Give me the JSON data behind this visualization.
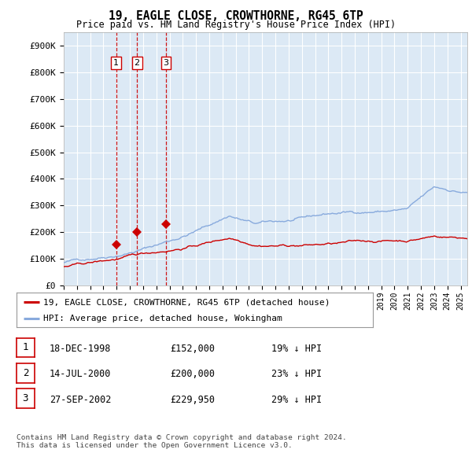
{
  "title1": "19, EAGLE CLOSE, CROWTHORNE, RG45 6TP",
  "title2": "Price paid vs. HM Land Registry's House Price Index (HPI)",
  "bg_color": "#dce9f5",
  "grid_color": "#ffffff",
  "ylim": [
    0,
    950000
  ],
  "yticks": [
    0,
    100000,
    200000,
    300000,
    400000,
    500000,
    600000,
    700000,
    800000,
    900000
  ],
  "ytick_labels": [
    "£0",
    "£100K",
    "£200K",
    "£300K",
    "£400K",
    "£500K",
    "£600K",
    "£700K",
    "£800K",
    "£900K"
  ],
  "sale_dates_num": [
    1998.96,
    2000.54,
    2002.74
  ],
  "sale_prices": [
    152000,
    200000,
    229950
  ],
  "sale_labels": [
    "1",
    "2",
    "3"
  ],
  "legend_entry1": "19, EAGLE CLOSE, CROWTHORNE, RG45 6TP (detached house)",
  "legend_entry2": "HPI: Average price, detached house, Wokingham",
  "table_rows": [
    [
      "1",
      "18-DEC-1998",
      "£152,000",
      "19% ↓ HPI"
    ],
    [
      "2",
      "14-JUL-2000",
      "£200,000",
      "23% ↓ HPI"
    ],
    [
      "3",
      "27-SEP-2002",
      "£229,950",
      "29% ↓ HPI"
    ]
  ],
  "footer": "Contains HM Land Registry data © Crown copyright and database right 2024.\nThis data is licensed under the Open Government Licence v3.0.",
  "red_line_color": "#cc0000",
  "blue_line_color": "#88aadd",
  "vline_color": "#cc0000",
  "xlim_left": 1995.0,
  "xlim_right": 2025.5
}
